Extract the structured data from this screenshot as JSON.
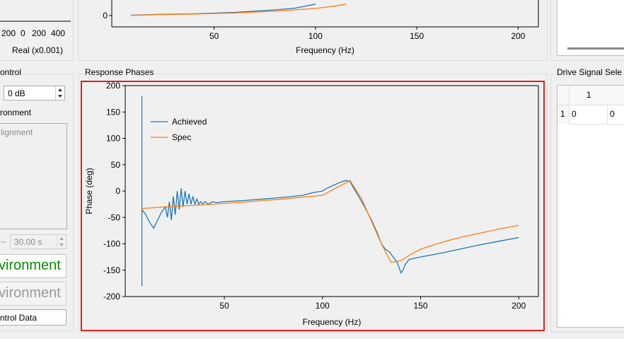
{
  "left_panel": {
    "top_axis": {
      "tick_labels": [
        "200",
        "0",
        "200",
        "400"
      ],
      "xlabel": "Real (x0.001)"
    },
    "control_title": "ontrol",
    "gain_value": "0 dB",
    "environment_label": "ronment",
    "alignment_placeholder": "lignment",
    "time_prefix": "--",
    "time_value": "30.00 s",
    "start_button_label": "vironment",
    "stop_button_label": "vironment",
    "control_data_button_label": "ntrol Data",
    "colors": {
      "start": "#0b8a0b",
      "stop": "#9a9a9a"
    }
  },
  "top_plot": {
    "chart_data": {
      "type": "line",
      "xlabel": "Frequency (Hz)",
      "x_ticks": [
        50,
        100,
        150,
        200
      ],
      "y_ticks_visible": [
        0
      ],
      "xlim": [
        -0.5,
        210
      ],
      "series": [
        {
          "color": "#1f77b4",
          "x": [
            9,
            20,
            40,
            60,
            80,
            90,
            100
          ],
          "y": [
            0.2,
            0.6,
            1.0,
            1.8,
            3.2,
            4.2,
            6.5
          ]
        },
        {
          "color": "#ff7f0e",
          "x": [
            9,
            20,
            40,
            60,
            80,
            100,
            110,
            115
          ],
          "y": [
            0.1,
            0.5,
            0.9,
            1.5,
            2.5,
            4.0,
            5.5,
            6.5
          ]
        }
      ]
    }
  },
  "response_phases": {
    "title": "Response Phases",
    "chart_data": {
      "type": "line",
      "xlabel": "Frequency (Hz)",
      "ylabel": "Phase (deg)",
      "xlim": [
        -0.5,
        210
      ],
      "ylim": [
        -200,
        200
      ],
      "x_ticks": [
        50,
        100,
        150,
        200
      ],
      "y_ticks": [
        200,
        150,
        100,
        50,
        0,
        -50,
        -100,
        -150,
        -200
      ],
      "legend_position": "top-left",
      "grid": false,
      "series": [
        {
          "name": "Achieved",
          "color": "#1f77b4",
          "x": [
            8,
            9,
            10,
            12,
            14,
            16,
            18,
            20,
            21,
            22,
            23,
            24,
            25,
            26,
            27,
            28,
            29,
            30,
            31,
            32,
            33,
            34,
            35,
            36,
            37,
            38,
            39,
            40,
            42,
            44,
            46,
            50,
            60,
            70,
            80,
            90,
            95,
            100,
            102,
            105,
            108,
            110,
            112,
            114,
            116,
            120,
            125,
            128,
            130,
            132,
            134,
            136,
            138,
            139,
            140,
            141,
            142,
            144,
            146,
            150,
            160,
            170,
            180,
            190,
            200
          ],
          "y": [
            -35,
            -40,
            -45,
            -60,
            -70,
            -55,
            -40,
            -30,
            -50,
            -20,
            -55,
            -10,
            -45,
            0,
            -35,
            5,
            -30,
            0,
            -25,
            -5,
            -25,
            -10,
            -25,
            -15,
            -25,
            -20,
            -25,
            -20,
            -25,
            -20,
            -22,
            -20,
            -18,
            -15,
            -12,
            -8,
            -3,
            0,
            5,
            10,
            15,
            18,
            20,
            18,
            5,
            -20,
            -55,
            -80,
            -100,
            -110,
            -115,
            -125,
            -135,
            -145,
            -155,
            -150,
            -140,
            -130,
            -128,
            -125,
            -118,
            -110,
            -102,
            -95,
            -88
          ]
        },
        {
          "name": "Spec",
          "color": "#ff7f0e",
          "x": [
            8,
            20,
            40,
            60,
            80,
            100,
            108,
            114,
            120,
            130,
            135,
            140,
            145,
            150,
            160,
            170,
            180,
            190,
            200
          ],
          "y": [
            -33,
            -30,
            -26,
            -21,
            -15,
            -8,
            8,
            20,
            -15,
            -100,
            -135,
            -132,
            -120,
            -110,
            -98,
            -88,
            -80,
            -72,
            -65
          ]
        }
      ]
    }
  },
  "drive_signal": {
    "title": "Drive Signal Sele",
    "column_header": "1",
    "row_header": "1",
    "cells": [
      "0",
      "0"
    ]
  }
}
